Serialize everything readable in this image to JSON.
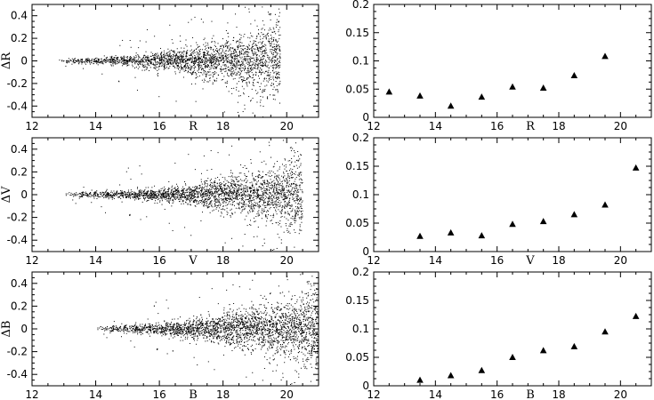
{
  "chart_data": [
    {
      "type": "scatter",
      "id": "dR-vs-R",
      "xlabel": "R",
      "ylabel": "ΔR",
      "xlim": [
        12,
        21
      ],
      "ylim": [
        -0.5,
        0.5
      ],
      "xticks": [
        12,
        14,
        16,
        18,
        20
      ],
      "yticks": [
        -0.4,
        -0.2,
        0,
        0.2,
        0.4
      ],
      "ytick_labels": [
        "-0.4",
        "-0.2",
        "0",
        "0.2",
        "0.4"
      ],
      "grid": false,
      "cloud": {
        "x_start": 12.8,
        "x_end": 19.8,
        "count": 2400,
        "envelope": [
          [
            13,
            0.01
          ],
          [
            14,
            0.015
          ],
          [
            15,
            0.025
          ],
          [
            16,
            0.04
          ],
          [
            17,
            0.06
          ],
          [
            18,
            0.09
          ],
          [
            19,
            0.14
          ],
          [
            19.8,
            0.18
          ]
        ]
      }
    },
    {
      "type": "scatter",
      "id": "sigR-vs-R",
      "xlabel": "R",
      "ylabel": "",
      "marker": "triangle",
      "xlim": [
        12,
        21
      ],
      "ylim": [
        0,
        0.2
      ],
      "xticks": [
        12,
        14,
        16,
        18,
        20
      ],
      "yticks": [
        0,
        0.05,
        0.1,
        0.15,
        0.2
      ],
      "ytick_labels": [
        "0",
        "0.05",
        "0.1",
        "0.15",
        "0.2"
      ],
      "grid": false,
      "x": [
        12.5,
        13.5,
        14.5,
        15.5,
        16.5,
        17.5,
        18.5,
        19.5
      ],
      "y": [
        0.045,
        0.038,
        0.02,
        0.036,
        0.054,
        0.052,
        0.074,
        0.108
      ]
    },
    {
      "type": "scatter",
      "id": "dV-vs-V",
      "xlabel": "V",
      "ylabel": "ΔV",
      "xlim": [
        12,
        21
      ],
      "ylim": [
        -0.5,
        0.5
      ],
      "xticks": [
        12,
        14,
        16,
        18,
        20
      ],
      "yticks": [
        -0.4,
        -0.2,
        0,
        0.2,
        0.4
      ],
      "ytick_labels": [
        "-0.4",
        "-0.2",
        "0",
        "0.2",
        "0.4"
      ],
      "grid": false,
      "cloud": {
        "x_start": 13.0,
        "x_end": 20.5,
        "count": 2600,
        "envelope": [
          [
            13,
            0.01
          ],
          [
            14,
            0.015
          ],
          [
            15,
            0.02
          ],
          [
            16,
            0.03
          ],
          [
            17,
            0.045
          ],
          [
            18,
            0.07
          ],
          [
            19,
            0.1
          ],
          [
            20,
            0.15
          ],
          [
            20.5,
            0.18
          ]
        ]
      }
    },
    {
      "type": "scatter",
      "id": "sigV-vs-V",
      "xlabel": "V",
      "ylabel": "",
      "marker": "triangle",
      "xlim": [
        12,
        21
      ],
      "ylim": [
        0,
        0.2
      ],
      "xticks": [
        12,
        14,
        16,
        18,
        20
      ],
      "yticks": [
        0,
        0.05,
        0.1,
        0.15,
        0.2
      ],
      "ytick_labels": [
        "0",
        "0.05",
        "0.1",
        "0.15",
        "0.2"
      ],
      "grid": false,
      "x": [
        13.5,
        14.5,
        15.5,
        16.5,
        17.5,
        18.5,
        19.5,
        20.5
      ],
      "y": [
        0.027,
        0.033,
        0.028,
        0.048,
        0.053,
        0.065,
        0.082,
        0.147
      ]
    },
    {
      "type": "scatter",
      "id": "dB-vs-B",
      "xlabel": "B",
      "ylabel": "ΔB",
      "xlim": [
        12,
        21
      ],
      "ylim": [
        -0.5,
        0.5
      ],
      "xticks": [
        12,
        14,
        16,
        18,
        20
      ],
      "yticks": [
        -0.4,
        -0.2,
        0,
        0.2,
        0.4
      ],
      "ytick_labels": [
        "-0.4",
        "-0.2",
        "0",
        "0.2",
        "0.4"
      ],
      "grid": false,
      "cloud": {
        "x_start": 14.0,
        "x_end": 21.0,
        "count": 2800,
        "envelope": [
          [
            14,
            0.01
          ],
          [
            15,
            0.018
          ],
          [
            16,
            0.028
          ],
          [
            17,
            0.045
          ],
          [
            18,
            0.065
          ],
          [
            19,
            0.09
          ],
          [
            20,
            0.13
          ],
          [
            21,
            0.18
          ]
        ]
      }
    },
    {
      "type": "scatter",
      "id": "sigB-vs-B",
      "xlabel": "B",
      "ylabel": "",
      "marker": "triangle",
      "xlim": [
        12,
        21
      ],
      "ylim": [
        0,
        0.2
      ],
      "xticks": [
        12,
        14,
        16,
        18,
        20
      ],
      "yticks": [
        0,
        0.05,
        0.1,
        0.15,
        0.2
      ],
      "ytick_labels": [
        "0",
        "0.05",
        "0.1",
        "0.15",
        "0.2"
      ],
      "grid": false,
      "x": [
        13.5,
        14.5,
        15.5,
        16.5,
        17.5,
        18.5,
        19.5,
        20.5
      ],
      "y": [
        0.01,
        0.018,
        0.027,
        0.05,
        0.062,
        0.069,
        0.095,
        0.122
      ]
    }
  ]
}
